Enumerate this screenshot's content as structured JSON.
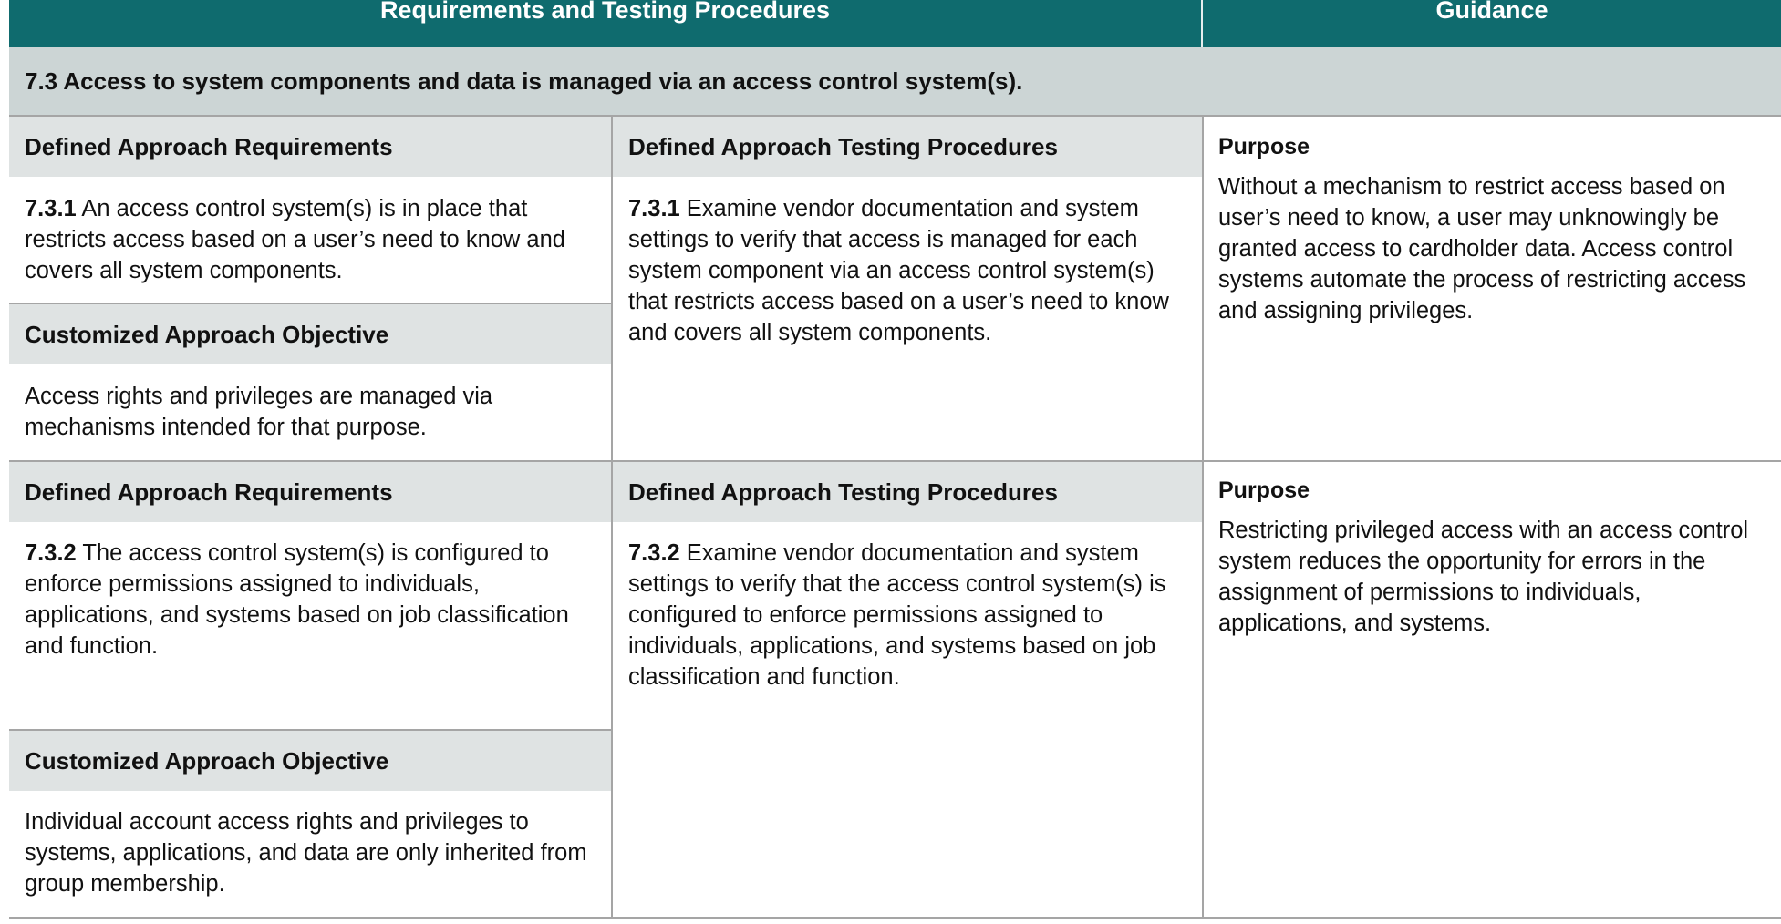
{
  "header": {
    "requirements_col": "Requirements and Testing Procedures",
    "guidance_col": "Guidance"
  },
  "section": {
    "title": "7.3 Access to system components and data is managed via an access control system(s)."
  },
  "rows": [
    {
      "requirements_heading": "Defined Approach Requirements",
      "requirement_id": "7.3.1",
      "requirement_text": " An access control system(s) is in place that restricts access based on a user’s need to know and covers all system components.",
      "objective_heading": "Customized Approach Objective",
      "objective_text": "Access rights and privileges are managed via mechanisms intended for that purpose.",
      "testing_heading": "Defined Approach Testing Procedures",
      "testing_id": "7.3.1",
      "testing_text": " Examine vendor documentation and system settings to verify that access is managed for each system component via an access control system(s) that restricts access based on a user’s need to know and covers all system components.",
      "purpose_heading": "Purpose",
      "purpose_text": "Without a mechanism to restrict access based on user’s need to know, a user may unknowingly be granted access to cardholder data. Access control systems automate the process of restricting access and assigning privileges."
    },
    {
      "requirements_heading": "Defined Approach Requirements",
      "requirement_id": "7.3.2",
      "requirement_text": " The access control system(s) is configured to enforce permissions assigned to individuals, applications, and systems based on job classification and function.",
      "objective_heading": "Customized Approach Objective",
      "objective_text": "Individual account access rights and privileges to systems, applications, and data are only inherited from group membership.",
      "testing_heading": "Defined Approach Testing Procedures",
      "testing_id": "7.3.2",
      "testing_text": " Examine vendor documentation and system settings to verify that the access control system(s) is configured to enforce permissions assigned to individuals, applications, and systems based on job classification and function.",
      "purpose_heading": "Purpose",
      "purpose_text": "Restricting privileged access with an access control system reduces the opportunity for errors in the assignment of permissions to individuals, applications, and systems."
    }
  ]
}
